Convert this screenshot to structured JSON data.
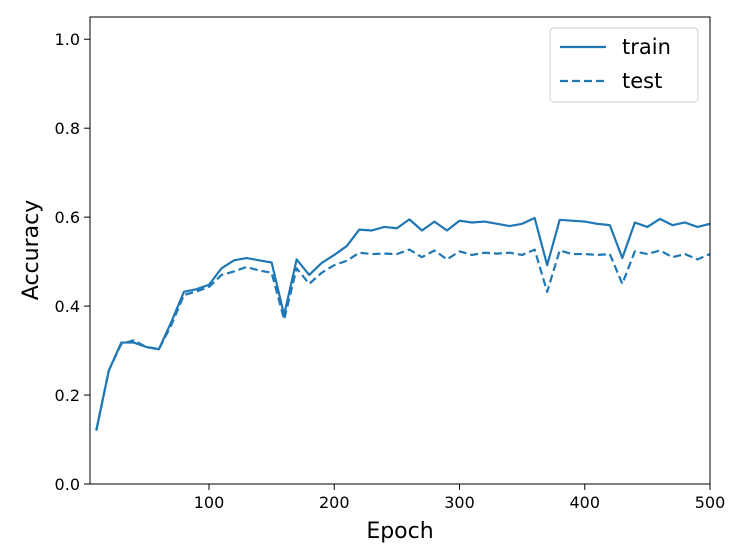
{
  "chart_data": {
    "type": "line",
    "xlabel": "Epoch",
    "ylabel": "Accuracy",
    "xlim": [
      5,
      500
    ],
    "ylim": [
      0.0,
      1.05
    ],
    "x_ticks": [
      100,
      200,
      300,
      400,
      500
    ],
    "y_ticks": [
      0.0,
      0.2,
      0.4,
      0.6,
      0.8,
      1.0
    ],
    "x_tick_labels": [
      "100",
      "200",
      "300",
      "400",
      "500"
    ],
    "y_tick_labels": [
      "0.0",
      "0.2",
      "0.4",
      "0.6",
      "0.8",
      "1.0"
    ],
    "grid": false,
    "legend_position": "top-right",
    "color": "#1f77b4",
    "x": [
      10,
      20,
      30,
      40,
      50,
      60,
      70,
      80,
      90,
      100,
      110,
      120,
      130,
      140,
      150,
      160,
      170,
      180,
      190,
      200,
      210,
      220,
      230,
      240,
      250,
      260,
      270,
      280,
      290,
      300,
      310,
      320,
      330,
      340,
      350,
      360,
      370,
      380,
      390,
      400,
      410,
      420,
      430,
      440,
      450,
      460,
      470,
      480,
      490,
      500
    ],
    "series": [
      {
        "name": "train",
        "style": "solid",
        "values": [
          0.12,
          0.255,
          0.318,
          0.318,
          0.308,
          0.303,
          0.365,
          0.432,
          0.438,
          0.448,
          0.485,
          0.503,
          0.508,
          0.503,
          0.498,
          0.38,
          0.505,
          0.47,
          0.497,
          0.515,
          0.535,
          0.572,
          0.57,
          0.578,
          0.575,
          0.595,
          0.57,
          0.59,
          0.57,
          0.592,
          0.588,
          0.59,
          0.585,
          0.58,
          0.585,
          0.598,
          0.492,
          0.594,
          0.592,
          0.59,
          0.585,
          0.582,
          0.508,
          0.588,
          0.578,
          0.596,
          0.582,
          0.588,
          0.578,
          0.585
        ]
      },
      {
        "name": "test",
        "style": "dashed",
        "values": [
          0.12,
          0.255,
          0.315,
          0.323,
          0.308,
          0.303,
          0.358,
          0.425,
          0.433,
          0.443,
          0.47,
          0.478,
          0.488,
          0.48,
          0.475,
          0.37,
          0.485,
          0.45,
          0.475,
          0.492,
          0.502,
          0.52,
          0.517,
          0.518,
          0.517,
          0.527,
          0.51,
          0.525,
          0.505,
          0.523,
          0.515,
          0.52,
          0.518,
          0.52,
          0.515,
          0.527,
          0.432,
          0.525,
          0.517,
          0.517,
          0.515,
          0.517,
          0.45,
          0.523,
          0.517,
          0.525,
          0.51,
          0.517,
          0.505,
          0.517
        ]
      }
    ]
  }
}
